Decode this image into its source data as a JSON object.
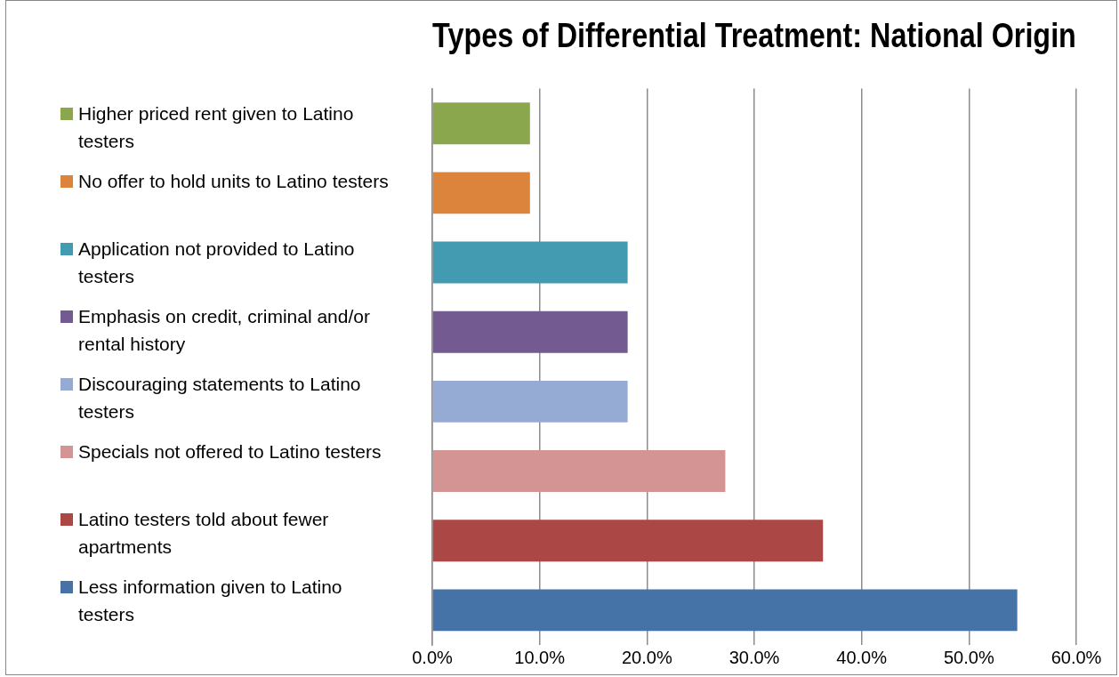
{
  "chart_data": {
    "type": "bar",
    "orientation": "horizontal",
    "title": "Types of Differential Treatment: National Origin",
    "categories": [
      null,
      null,
      null,
      null,
      null,
      null,
      null,
      null
    ],
    "series": [
      {
        "name": "Higher priced rent given to Latino testers",
        "color": "#8aa74e",
        "values": [
          9.1,
          null,
          null,
          null,
          null,
          null,
          null,
          null
        ]
      },
      {
        "name": "No offer to hold units to Latino testers",
        "color": "#dd843c",
        "values": [
          null,
          9.1,
          null,
          null,
          null,
          null,
          null,
          null
        ]
      },
      {
        "name": "Application not provided to Latino testers",
        "color": "#439bb2",
        "values": [
          null,
          null,
          18.2,
          null,
          null,
          null,
          null,
          null
        ]
      },
      {
        "name": "Emphasis on credit, criminal and/or rental history",
        "color": "#735a91",
        "values": [
          null,
          null,
          null,
          18.2,
          null,
          null,
          null,
          null
        ]
      },
      {
        "name": "Discouraging statements to Latino testers",
        "color": "#96abd3",
        "values": [
          null,
          null,
          null,
          null,
          18.2,
          null,
          null,
          null
        ]
      },
      {
        "name": "Specials not offered to Latino testers",
        "color": "#d39493",
        "values": [
          null,
          null,
          null,
          null,
          null,
          27.3,
          null,
          null
        ]
      },
      {
        "name": "Latino testers told about fewer apartments",
        "color": "#ab4744",
        "values": [
          null,
          null,
          null,
          null,
          null,
          null,
          36.4,
          null
        ]
      },
      {
        "name": "Less information given to Latino testers",
        "color": "#4572a7",
        "values": [
          null,
          null,
          null,
          null,
          null,
          null,
          null,
          54.5
        ]
      }
    ],
    "xlim": [
      0,
      60
    ],
    "xticks": [
      {
        "value": 0,
        "label": "0.0%"
      },
      {
        "value": 10,
        "label": "10.0%"
      },
      {
        "value": 20,
        "label": "20.0%"
      },
      {
        "value": 30,
        "label": "30.0%"
      },
      {
        "value": 40,
        "label": "40.0%"
      },
      {
        "value": 50,
        "label": "50.0%"
      },
      {
        "value": 60,
        "label": "60.0%"
      }
    ],
    "grid": "x",
    "legend": "left"
  }
}
